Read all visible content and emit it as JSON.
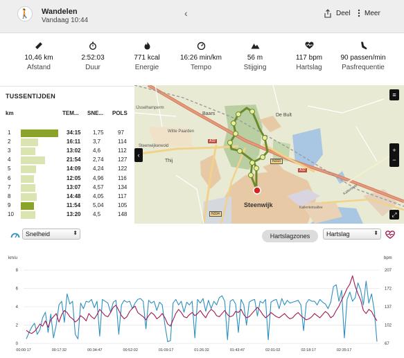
{
  "header": {
    "title": "Wandelen",
    "date": "Vandaag 10:44",
    "share_label": "Deel",
    "more_label": "Meer"
  },
  "stats": [
    {
      "icon": "ruler-icon",
      "value": "10,46 km",
      "label": "Afstand"
    },
    {
      "icon": "stopwatch-icon",
      "value": "2:52:03",
      "label": "Duur"
    },
    {
      "icon": "flame-icon",
      "value": "771 kcal",
      "label": "Energie"
    },
    {
      "icon": "speedometer-icon",
      "value": "16:26 min/km",
      "label": "Tempo"
    },
    {
      "icon": "mountain-icon",
      "value": "56 m",
      "label": "Stijging"
    },
    {
      "icon": "heart-icon",
      "value": "117 bpm",
      "label": "Hartslag"
    },
    {
      "icon": "shoe-icon",
      "value": "90 passen/min",
      "label": "Pasfrequentie"
    }
  ],
  "splits": {
    "title": "TUSSENTIJDEN",
    "headers": {
      "km": "km",
      "time": "TEM...",
      "speed": "SNE...",
      "hr": "POLS"
    },
    "rows": [
      {
        "km": "1",
        "time": "34:15",
        "speed": "1,75",
        "hr": "97",
        "fraction": 1.0,
        "color": "#8aa42a"
      },
      {
        "km": "2",
        "time": "16:11",
        "speed": "3,7",
        "hr": "114",
        "fraction": 0.47,
        "color": "#d9e4b0"
      },
      {
        "km": "3",
        "time": "13:02",
        "speed": "4,6",
        "hr": "112",
        "fraction": 0.38,
        "color": "#d9e4b0"
      },
      {
        "km": "4",
        "time": "21:54",
        "speed": "2,74",
        "hr": "127",
        "fraction": 0.64,
        "color": "#d9e4b0"
      },
      {
        "km": "5",
        "time": "14:09",
        "speed": "4,24",
        "hr": "122",
        "fraction": 0.41,
        "color": "#d9e4b0"
      },
      {
        "km": "6",
        "time": "12:05",
        "speed": "4,96",
        "hr": "116",
        "fraction": 0.35,
        "color": "#d9e4b0"
      },
      {
        "km": "7",
        "time": "13:07",
        "speed": "4,57",
        "hr": "134",
        "fraction": 0.38,
        "color": "#d9e4b0"
      },
      {
        "km": "8",
        "time": "14:48",
        "speed": "4,05",
        "hr": "117",
        "fraction": 0.43,
        "color": "#d9e4b0"
      },
      {
        "km": "9",
        "time": "11:54",
        "speed": "5,04",
        "hr": "105",
        "fraction": 0.35,
        "color": "#8aa42a"
      },
      {
        "km": "10",
        "time": "13:20",
        "speed": "4,5",
        "hr": "148",
        "fraction": 0.39,
        "color": "#d9e4b0"
      }
    ]
  },
  "map": {
    "labels": [
      {
        "name": "map-label-ijsselhamperm",
        "text": "IJsselhamperm"
      },
      {
        "name": "map-label-baars",
        "text": "Baars"
      },
      {
        "name": "map-label-de-bult",
        "text": "De Bult"
      },
      {
        "name": "map-label-witte-paarden",
        "text": "Witte Paarden"
      },
      {
        "name": "map-label-steenwijkerwold",
        "text": "Steenwijkerwold"
      },
      {
        "name": "map-label-thij",
        "text": "Thij"
      },
      {
        "name": "map-label-steenwijk",
        "text": "Steenwijk"
      },
      {
        "name": "map-label-a32",
        "text": "A32"
      },
      {
        "name": "map-label-n333",
        "text": "N333"
      },
      {
        "name": "map-label-a32b",
        "text": "A32"
      },
      {
        "name": "map-label-n334",
        "text": "N334"
      },
      {
        "name": "map-label-kallenkote",
        "text": "Kallenkote"
      },
      {
        "name": "map-label-kalenkotestr",
        "text": "Kallenkotsallee"
      }
    ]
  },
  "toolbar": {
    "left_select": "Snelheid",
    "zones_button": "Hartslagzones",
    "right_select": "Hartslag"
  },
  "chart_data": {
    "type": "line",
    "left_unit": "km/u",
    "right_unit": "bpm",
    "left_ticks": [
      "8",
      "6",
      "4",
      "2",
      "0"
    ],
    "right_ticks": [
      "207",
      "172",
      "137",
      "102",
      "67"
    ],
    "left_ylim": [
      0,
      8
    ],
    "right_ylim": [
      67,
      207
    ],
    "x_ticks": [
      "00:00:17",
      "00:17:32",
      "00:34:47",
      "00:52:02",
      "01:09:17",
      "01:26:32",
      "01:43:47",
      "02:01:02",
      "02:18:17",
      "02:35:17"
    ],
    "series": [
      {
        "axis": "left",
        "color": "#2b8fc0",
        "values": [
          0.5,
          1.2,
          1.8,
          2.2,
          1.0,
          1.5,
          2.8,
          3.4,
          1.2,
          3.2,
          0.6,
          2.0,
          4.2,
          4.6,
          2.3,
          5.4,
          4.3,
          4.6,
          1.0,
          0.5,
          4.4,
          3.8,
          4.6,
          4.5,
          4.8,
          3.9,
          4.6,
          0.8,
          4.8,
          4.6,
          4.4,
          3.4,
          4.5,
          4.7,
          1.0,
          4.2,
          4.7,
          4.5,
          4.6,
          3.8,
          4.4,
          4.8,
          4.9,
          4.6,
          1.6,
          4.7,
          4.4,
          4.6,
          3.6,
          4.5,
          4.2,
          2.0,
          0.2,
          0.3,
          4.4,
          4.8,
          4.2,
          4.6,
          3.4,
          4.5,
          4.2,
          4.6,
          0.6,
          4.8,
          4.4,
          4.9,
          3.5,
          4.7,
          3.8,
          4.6,
          4.2,
          5.0,
          5.2,
          4.6,
          0.4,
          4.6,
          4.8,
          4.3,
          1.2,
          4.8,
          4.2,
          2.0,
          4.5,
          4.7,
          4.8,
          3.0,
          4.6,
          4.4,
          4.8,
          0.4,
          4.5,
          4.7,
          4.8,
          3.8,
          4.9,
          4.2,
          4.7,
          4.4,
          4.5,
          4.6,
          4.7,
          4.2,
          1.4,
          4.4,
          4.8,
          4.6,
          4.6,
          4.2,
          4.8,
          4.5,
          4.3,
          3.8,
          4.5,
          6.2,
          6.4,
          4.6,
          5.8,
          0.6,
          4.8,
          5.6,
          4.6,
          5.0,
          6.6,
          5.8,
          4.2,
          6.8,
          4.4,
          5.4,
          3.6,
          0.2
        ]
      },
      {
        "axis": "right",
        "color": "#a01850",
        "values": [
          92,
          88,
          86,
          90,
          96,
          104,
          100,
          110,
          98,
          112,
          118,
          124,
          108,
          122,
          130,
          126,
          118,
          114,
          108,
          112,
          120,
          116,
          110,
          124,
          118,
          114,
          122,
          132,
          126,
          120,
          118,
          126,
          136,
          140,
          130,
          120,
          114,
          118,
          128,
          134,
          138,
          126,
          122,
          118,
          112,
          120,
          126,
          122,
          114,
          118,
          124,
          116,
          104,
          100,
          112,
          124,
          132,
          126,
          118,
          116,
          122,
          126,
          120,
          124,
          130,
          122,
          116,
          126,
          132,
          128,
          120,
          118,
          124,
          130,
          122,
          118,
          120,
          128,
          126,
          132,
          122,
          116,
          118,
          124,
          130,
          136,
          130,
          122,
          116,
          120,
          126,
          122,
          118,
          116,
          120,
          124,
          118,
          114,
          116,
          122,
          126,
          120,
          116,
          112,
          114,
          118,
          124,
          120,
          116,
          122,
          128,
          124,
          116,
          120,
          130,
          138,
          150,
          160,
          172,
          180,
          196,
          176,
          162,
          150,
          130,
          124,
          132,
          128,
          118,
          110
        ]
      }
    ]
  }
}
